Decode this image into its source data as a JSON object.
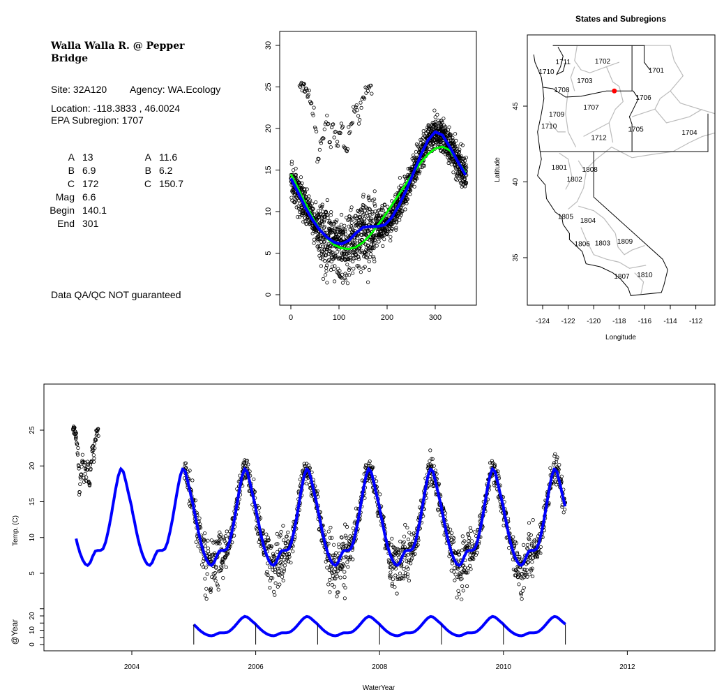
{
  "info": {
    "title_line1": "Walla Walla R. @ Pepper",
    "title_line2": "Bridge",
    "site": "Site: 32A120",
    "agency": "Agency: WA.Ecology",
    "location": "Location: -118.3833 , 46.0024",
    "subregion": "EPA Subregion: 1707",
    "params_left": [
      [
        "A",
        "13"
      ],
      [
        "B",
        "6.9"
      ],
      [
        "C",
        "172"
      ],
      [
        "Mag",
        "6.6"
      ],
      [
        "Begin",
        "140.1"
      ],
      [
        "End",
        "301"
      ]
    ],
    "params_right": [
      [
        "A",
        "11.6"
      ],
      [
        "B",
        "6.2"
      ],
      [
        "C",
        "150.7"
      ]
    ],
    "disclaimer": "Data QA/QC NOT guaranteed",
    "disclaimer_color": "#c0392b"
  },
  "chart_data": [
    {
      "type": "scatter",
      "name": "day-of-year-plot",
      "xlim": [
        0,
        365
      ],
      "ylim": [
        0,
        30
      ],
      "xticks": [
        "0",
        "100",
        "200",
        "300"
      ],
      "xtick_values": [
        0,
        100,
        200,
        300
      ],
      "yticks": [
        "0",
        "5",
        "10",
        "15",
        "20",
        "25",
        "30"
      ],
      "ytick_values": [
        0,
        5,
        10,
        15,
        20,
        25,
        30
      ],
      "series": [
        {
          "name": "blue-fit",
          "color": "#0000ff",
          "x": [
            0,
            15,
            30,
            45,
            60,
            75,
            90,
            105,
            120,
            135,
            150,
            165,
            180,
            195,
            210,
            225,
            240,
            255,
            270,
            285,
            300,
            315,
            330,
            345,
            365
          ],
          "y": [
            14.0,
            12.3,
            10.5,
            9.0,
            7.8,
            6.9,
            6.3,
            6.1,
            6.5,
            7.4,
            8.1,
            8.2,
            8.2,
            8.4,
            9.3,
            10.8,
            12.6,
            14.7,
            16.8,
            18.6,
            19.6,
            19.2,
            17.8,
            16.2,
            14.2
          ]
        },
        {
          "name": "green-fit",
          "color": "#00ff00",
          "x": [
            0,
            15,
            30,
            45,
            60,
            75,
            90,
            105,
            120,
            135,
            150,
            165,
            180,
            195,
            210,
            225,
            240,
            255,
            270,
            285,
            300,
            315,
            330,
            345,
            365
          ],
          "y": [
            14.5,
            12.8,
            11.0,
            9.3,
            7.9,
            6.8,
            6.0,
            5.6,
            5.5,
            5.7,
            6.3,
            7.2,
            8.3,
            9.5,
            10.8,
            12.1,
            13.4,
            14.7,
            15.9,
            16.9,
            17.6,
            17.8,
            17.4,
            16.2,
            14.5
          ]
        }
      ],
      "observations_2003": {
        "x_days": [
          18,
          22,
          25,
          28,
          32,
          35,
          40,
          45,
          50,
          55,
          60,
          65,
          70,
          75,
          80,
          85,
          90,
          95,
          100,
          105,
          110,
          115,
          120,
          125,
          130,
          135,
          140,
          145,
          150,
          155,
          160,
          165
        ],
        "y": [
          25,
          25,
          24.9,
          24.8,
          24.5,
          24,
          23,
          22,
          20,
          16,
          18,
          19,
          20.5,
          21,
          18,
          20,
          19.5,
          18.5,
          19,
          20,
          18,
          17.5,
          20,
          21,
          22,
          22.5,
          21,
          23,
          24,
          24.5,
          24.8,
          24.6
        ]
      }
    },
    {
      "type": "map",
      "title": "States and Subregions",
      "xlabel": "Longitude",
      "ylabel": "Latitude",
      "xlim": [
        -125.2,
        -110.6
      ],
      "ylim": [
        32.3,
        49.7
      ],
      "xticks": [
        "-124",
        "-122",
        "-120",
        "-118",
        "-116",
        "-114",
        "-112"
      ],
      "xtick_values": [
        -124,
        -122,
        -120,
        -118,
        -116,
        -114,
        -112
      ],
      "yticks": [
        "35",
        "40",
        "45"
      ],
      "ytick_values": [
        35,
        40,
        45
      ],
      "site": {
        "lon": -118.3833,
        "lat": 46.0024,
        "color": "#ff0000"
      },
      "region_labels": [
        {
          "t": "1711",
          "lon": -122.4,
          "lat": 47.95
        },
        {
          "t": "1710",
          "lon": -123.7,
          "lat": 47.3
        },
        {
          "t": "1702",
          "lon": -119.3,
          "lat": 48.0
        },
        {
          "t": "1701",
          "lon": -115.1,
          "lat": 47.4
        },
        {
          "t": "1703",
          "lon": -120.7,
          "lat": 46.7
        },
        {
          "t": "1708",
          "lon": -122.5,
          "lat": 46.1
        },
        {
          "t": "1706",
          "lon": -116.1,
          "lat": 45.6
        },
        {
          "t": "1707",
          "lon": -120.2,
          "lat": 44.95
        },
        {
          "t": "1709",
          "lon": -122.9,
          "lat": 44.5
        },
        {
          "t": "1710",
          "lon": -123.5,
          "lat": 43.7
        },
        {
          "t": "1705",
          "lon": -116.7,
          "lat": 43.5
        },
        {
          "t": "1704",
          "lon": -112.5,
          "lat": 43.3
        },
        {
          "t": "1712",
          "lon": -119.6,
          "lat": 42.95
        },
        {
          "t": "1801",
          "lon": -122.7,
          "lat": 41.0
        },
        {
          "t": "1808",
          "lon": -120.3,
          "lat": 40.85
        },
        {
          "t": "1802",
          "lon": -121.5,
          "lat": 40.2
        },
        {
          "t": "1805",
          "lon": -122.2,
          "lat": 37.75
        },
        {
          "t": "1804",
          "lon": -120.45,
          "lat": 37.5
        },
        {
          "t": "1806",
          "lon": -120.9,
          "lat": 35.95
        },
        {
          "t": "1803",
          "lon": -119.3,
          "lat": 36.0
        },
        {
          "t": "1809",
          "lon": -117.55,
          "lat": 36.1
        },
        {
          "t": "1807",
          "lon": -117.8,
          "lat": 33.8
        },
        {
          "t": "1810",
          "lon": -116.0,
          "lat": 33.9
        }
      ],
      "state_lines": [
        [
          [
            -124.7,
            48.4
          ],
          [
            -124.6,
            47.9
          ],
          [
            -124.1,
            46.9
          ],
          [
            -124.0,
            46.3
          ],
          [
            -123.9,
            45.5
          ],
          [
            -124.1,
            44.5
          ],
          [
            -124.4,
            43.3
          ],
          [
            -124.2,
            42.0
          ],
          [
            -124.1,
            41.5
          ],
          [
            -124.4,
            40.4
          ],
          [
            -123.8,
            39.8
          ],
          [
            -123.7,
            38.9
          ],
          [
            -123.0,
            38.0
          ],
          [
            -122.5,
            37.7
          ],
          [
            -122.4,
            37.2
          ],
          [
            -121.9,
            36.6
          ],
          [
            -121.9,
            36.2
          ],
          [
            -120.9,
            35.4
          ],
          [
            -120.6,
            34.6
          ],
          [
            -119.5,
            34.4
          ],
          [
            -118.5,
            34.0
          ],
          [
            -117.9,
            33.6
          ],
          [
            -117.3,
            33.0
          ],
          [
            -117.1,
            32.5
          ],
          [
            -114.7,
            32.7
          ],
          [
            -114.5,
            33.2
          ],
          [
            -114.2,
            34.2
          ],
          [
            -114.6,
            34.9
          ],
          [
            -120.0,
            39.0
          ],
          [
            -120.0,
            42.0
          ]
        ],
        [
          [
            -124.0,
            46.25
          ],
          [
            -123.2,
            46.15
          ],
          [
            -122.2,
            45.6
          ],
          [
            -121.0,
            45.65
          ],
          [
            -119.6,
            45.9
          ],
          [
            -119.0,
            46.0
          ],
          [
            -116.9,
            46.0
          ]
        ],
        [
          [
            -117.0,
            49.0
          ],
          [
            -117.0,
            46.0
          ]
        ],
        [
          [
            -123.2,
            49.0
          ],
          [
            -116.0,
            49.0
          ]
        ],
        [
          [
            -116.05,
            49.0
          ],
          [
            -116.05,
            47.9
          ],
          [
            -115.6,
            47.4
          ]
        ],
        [
          [
            -116.9,
            46.0
          ],
          [
            -116.5,
            45.5
          ],
          [
            -116.9,
            44.8
          ],
          [
            -117.2,
            44.3
          ],
          [
            -117.0,
            43.8
          ],
          [
            -117.0,
            42.0
          ]
        ],
        [
          [
            -124.2,
            42.0
          ],
          [
            -111.05,
            42.0
          ],
          [
            -111.05,
            44.5
          ]
        ],
        [
          [
            -122.8,
            48.9
          ],
          [
            -122.4,
            48.3
          ],
          [
            -122.6,
            47.6
          ],
          [
            -122.9,
            47.1
          ],
          [
            -122.4,
            47.3
          ],
          [
            -122.2,
            47.9
          ]
        ]
      ],
      "subregion_lines": [
        [
          [
            -123.2,
            49.0
          ],
          [
            -114.0,
            49.0
          ],
          [
            -113.7,
            48.0
          ],
          [
            -113.0,
            47.0
          ],
          [
            -114.0,
            46.0
          ],
          [
            -113.2,
            45.2
          ],
          [
            -111.7,
            44.8
          ],
          [
            -110.5,
            44.5
          ],
          [
            -110.2,
            43.3
          ],
          [
            -111.5,
            43.0
          ],
          [
            -112.5,
            42.6
          ],
          [
            -113.8,
            42.0
          ],
          [
            -115.5,
            41.8
          ],
          [
            -117.0,
            41.6
          ],
          [
            -118.6,
            42.3
          ],
          [
            -119.8,
            41.5
          ],
          [
            -120.4,
            41.0
          ]
        ],
        [
          [
            -121.3,
            49.0
          ],
          [
            -121.5,
            48.0
          ],
          [
            -121.0,
            47.4
          ],
          [
            -120.3,
            47.2
          ],
          [
            -119.0,
            47.6
          ],
          [
            -118.0,
            47.9
          ]
        ],
        [
          [
            -121.5,
            47.6
          ],
          [
            -121.8,
            46.9
          ],
          [
            -121.5,
            46.0
          ]
        ],
        [
          [
            -119.0,
            47.6
          ],
          [
            -118.5,
            46.6
          ],
          [
            -118.0,
            46.3
          ],
          [
            -117.7,
            45.3
          ],
          [
            -118.3,
            44.8
          ],
          [
            -118.8,
            43.9
          ],
          [
            -118.5,
            42.6
          ]
        ],
        [
          [
            -122.0,
            46.1
          ],
          [
            -122.2,
            44.5
          ],
          [
            -122.0,
            43.3
          ],
          [
            -121.4,
            42.3
          ]
        ],
        [
          [
            -123.5,
            44.0
          ],
          [
            -122.8,
            43.3
          ],
          [
            -122.2,
            43.3
          ]
        ],
        [
          [
            -120.8,
            43.0
          ],
          [
            -119.7,
            43.5
          ],
          [
            -118.8,
            43.9
          ]
        ],
        [
          [
            -117.0,
            44.3
          ],
          [
            -115.2,
            44.8
          ],
          [
            -114.8,
            45.5
          ],
          [
            -114.0,
            46.0
          ]
        ],
        [
          [
            -115.2,
            44.8
          ],
          [
            -114.3,
            43.9
          ],
          [
            -112.5,
            44.3
          ],
          [
            -111.5,
            44.8
          ]
        ],
        [
          [
            -122.7,
            41.9
          ],
          [
            -122.0,
            41.5
          ],
          [
            -121.7,
            40.3
          ],
          [
            -122.2,
            39.5
          ]
        ],
        [
          [
            -121.2,
            41.4
          ],
          [
            -120.6,
            40.6
          ],
          [
            -120.8,
            39.6
          ],
          [
            -121.3,
            38.7
          ],
          [
            -122.0,
            38.2
          ]
        ],
        [
          [
            -121.2,
            38.4
          ],
          [
            -120.0,
            38.1
          ],
          [
            -119.2,
            37.6
          ],
          [
            -118.3,
            36.6
          ]
        ],
        [
          [
            -121.0,
            37.0
          ],
          [
            -120.6,
            36.2
          ],
          [
            -120.0,
            35.2
          ],
          [
            -119.0,
            34.9
          ],
          [
            -118.0,
            34.7
          ],
          [
            -117.2,
            34.3
          ],
          [
            -115.9,
            34.5
          ]
        ],
        [
          [
            -118.3,
            36.6
          ],
          [
            -118.1,
            35.7
          ],
          [
            -117.6,
            35.2
          ],
          [
            -117.0,
            35.5
          ],
          [
            -116.0,
            35.8
          ]
        ],
        [
          [
            -116.8,
            34.0
          ],
          [
            -116.1,
            33.4
          ],
          [
            -116.3,
            32.6
          ]
        ]
      ]
    },
    {
      "type": "line+scatter",
      "name": "time-series",
      "xlabel": "WaterYear",
      "ylabel": "Temp. (C)",
      "inset_ylabel": "@Year",
      "xlim": [
        2002.6,
        2013.5
      ],
      "ylim": [
        0,
        30
      ],
      "xticks": [
        "2004",
        "2006",
        "2008",
        "2010",
        "2012"
      ],
      "xtick_values": [
        2004,
        2006,
        2008,
        2010,
        2012
      ],
      "yticks": [
        "5",
        "10",
        "15",
        "20",
        "25"
      ],
      "ytick_values": [
        5,
        10,
        15,
        20,
        25
      ],
      "inset_yticks": [
        "0",
        "10",
        "20"
      ],
      "inset_ytick_values": [
        0,
        10,
        20
      ],
      "fit_range": [
        2003.1,
        2011.0
      ],
      "inset_fit_range": [
        2005.0,
        2011.0
      ],
      "observation_range": [
        2004.85,
        2011.0
      ],
      "fit_color": "#0000ff"
    }
  ]
}
